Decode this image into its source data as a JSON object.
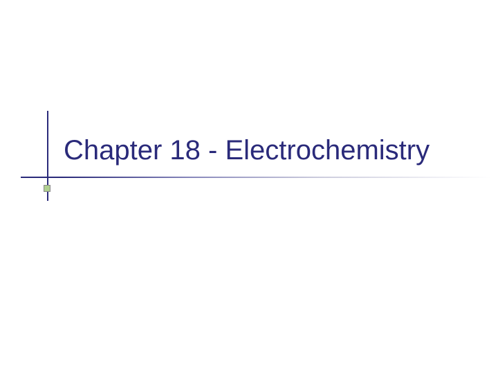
{
  "slide": {
    "title": "Chapter  18 - Electrochemistry",
    "title_color": "#2a2a7a",
    "title_fontsize": 40,
    "background_color": "#ffffff",
    "vertical_line_color": "#2a2a7a",
    "underline_solid_color": "#2a2a7a",
    "underline_gradient_start": "#2a2a7a",
    "underline_gradient_end": "#ffffff",
    "bullet_color": "#b0d090",
    "bullet_border_color": "#888888"
  }
}
